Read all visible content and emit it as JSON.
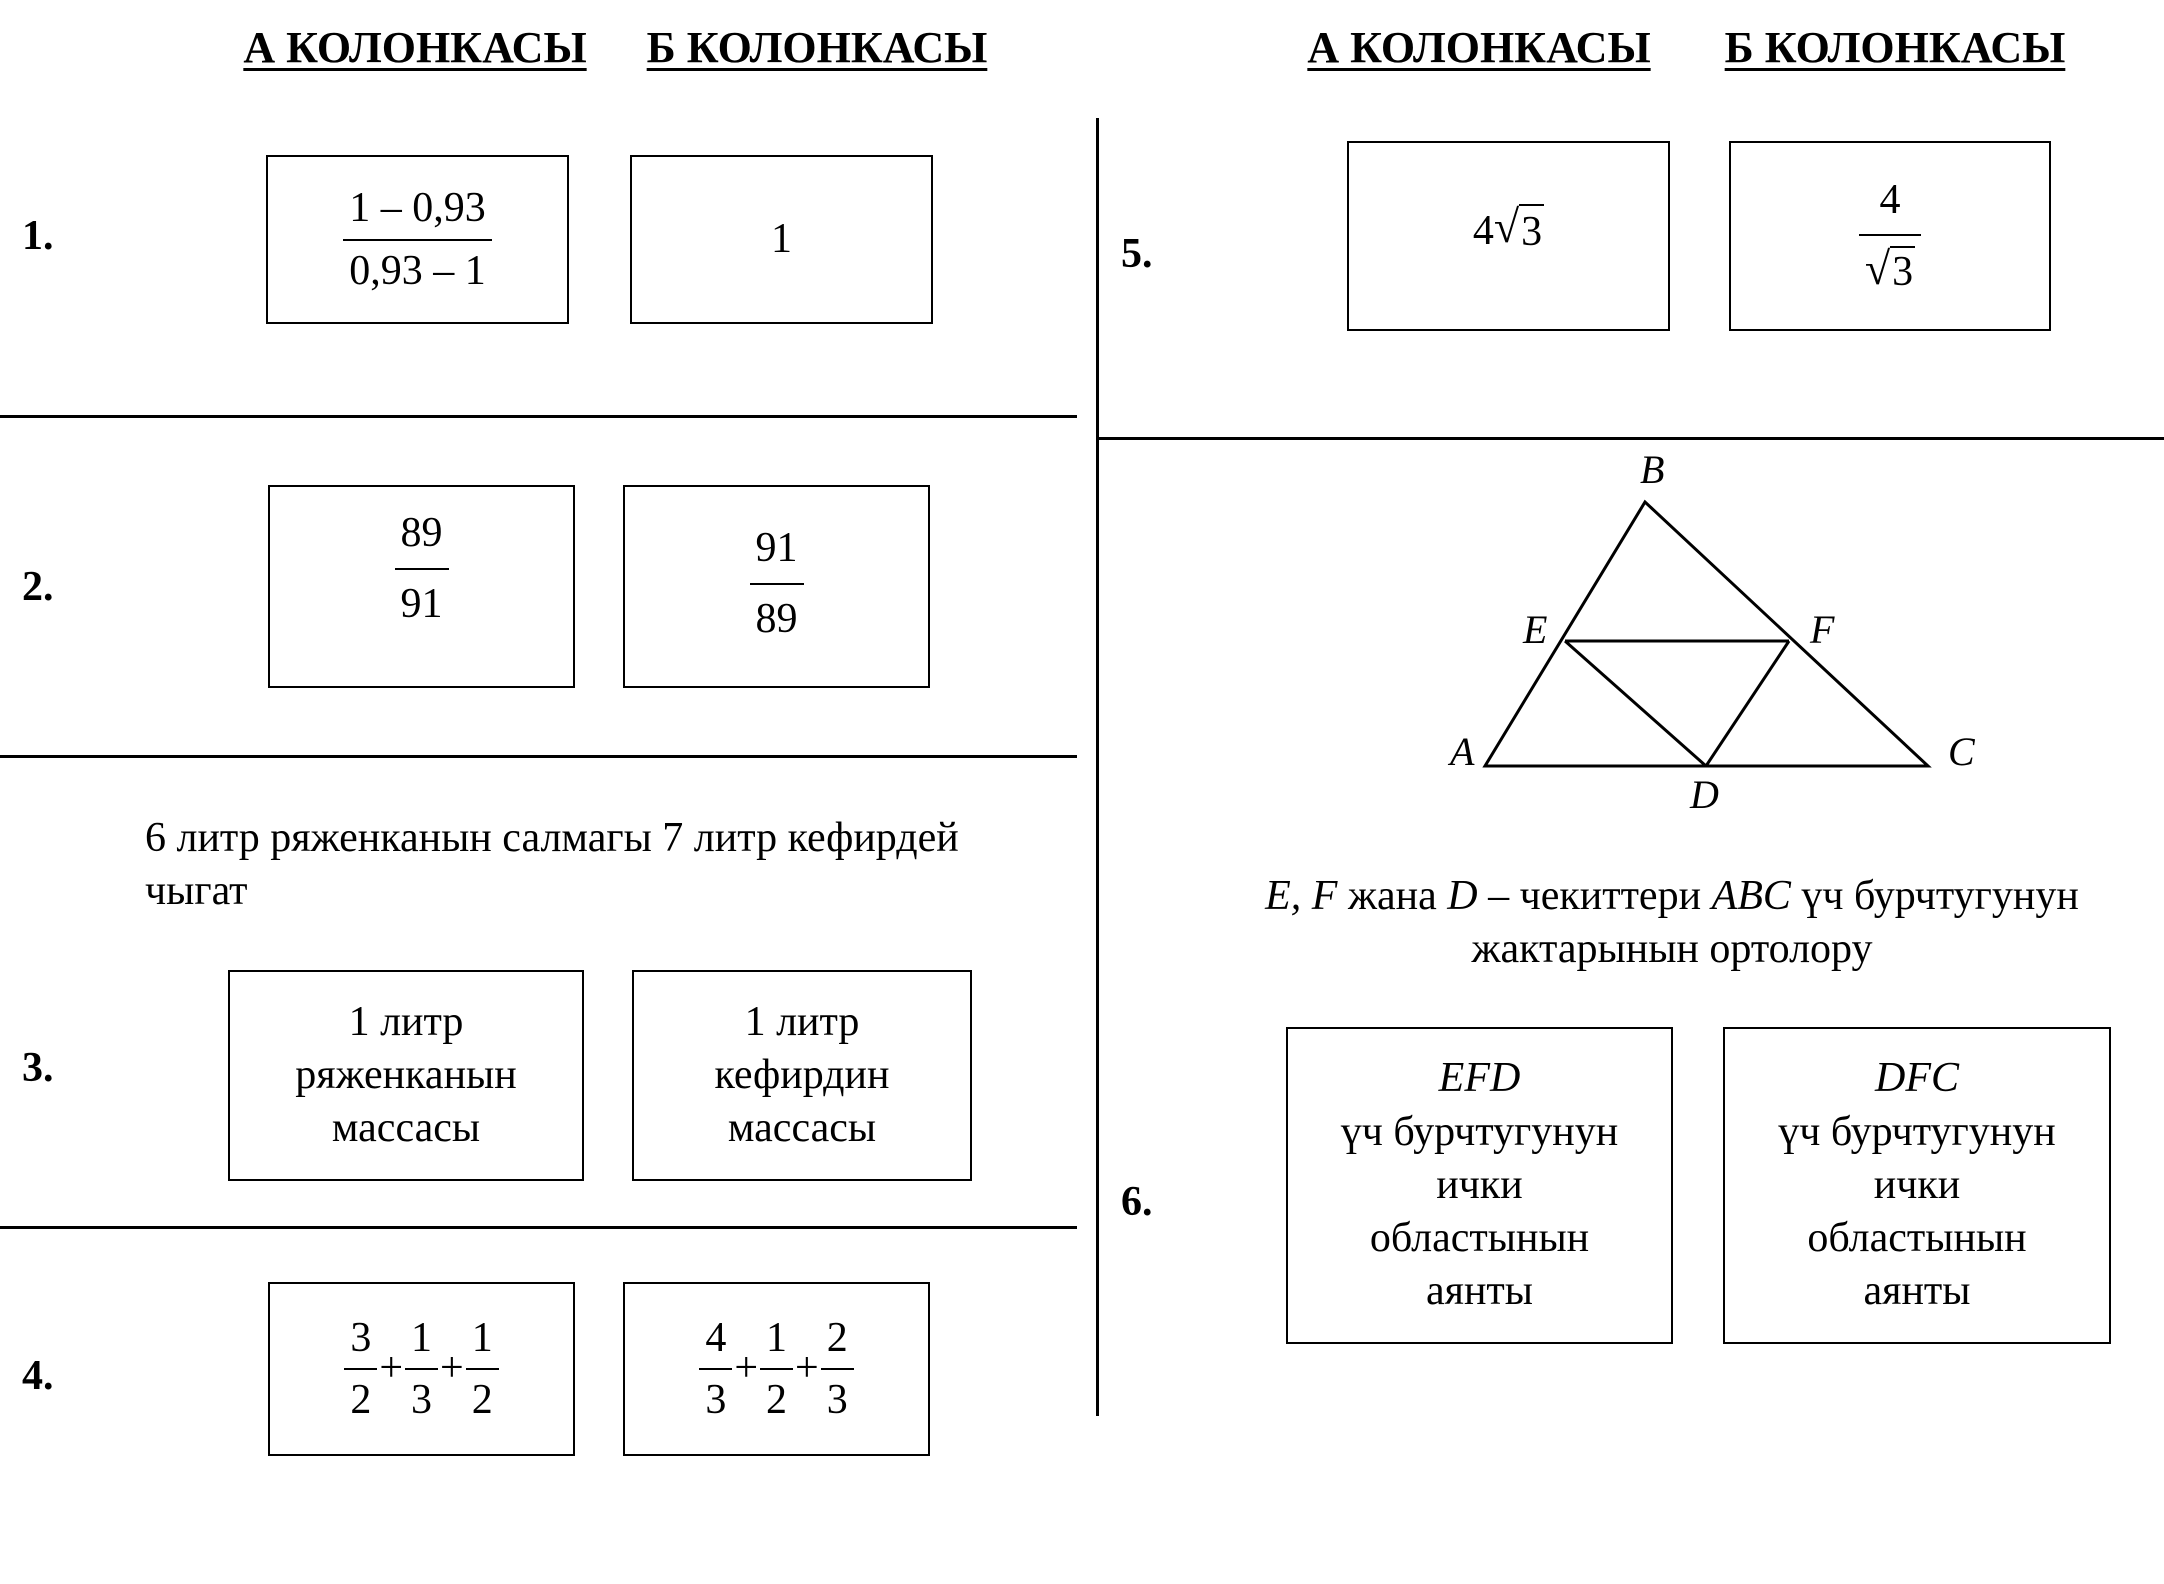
{
  "headers": {
    "left_col_a": "А КОЛОНКАСЫ",
    "left_col_b": "Б КОЛОНКАСЫ",
    "right_col_a": "А КОЛОНКАСЫ",
    "right_col_b": "Б КОЛОНКАСЫ"
  },
  "items": {
    "q1": {
      "number": "1.",
      "a_num": "1 – 0,93",
      "a_den": "0,93 – 1",
      "b": "1"
    },
    "q2": {
      "number": "2.",
      "a_num": "89",
      "a_den": "91",
      "b_num": "91",
      "b_den": "89"
    },
    "q3": {
      "number": "3.",
      "statement": "6 литр ряженканын салмагы 7 литр кефирдей чыгат",
      "a_line1": "1 литр",
      "a_line2": "ряженканын",
      "a_line3": "массасы",
      "b_line1": "1 литр",
      "b_line2": "кефирдин",
      "b_line3": "массасы"
    },
    "q4": {
      "number": "4.",
      "a_terms": [
        {
          "n": "3",
          "d": "2"
        },
        {
          "n": "1",
          "d": "3"
        },
        {
          "n": "1",
          "d": "2"
        }
      ],
      "b_terms": [
        {
          "n": "4",
          "d": "3"
        },
        {
          "n": "1",
          "d": "2"
        },
        {
          "n": "2",
          "d": "3"
        }
      ],
      "plus": "+"
    },
    "q5": {
      "number": "5.",
      "a_coef": "4",
      "a_rad": "3",
      "b_num": "4",
      "b_rad": "3",
      "radical": "√"
    },
    "q6": {
      "number": "6.",
      "figure_labels": {
        "A": "A",
        "B": "B",
        "C": "C",
        "D": "D",
        "E": "E",
        "F": "F"
      },
      "statement_p1": "E, F",
      "statement_p2": " жана ",
      "statement_p3": "D",
      "statement_p4": " – чекиттери ",
      "statement_p5": "ABC",
      "statement_p6": " үч бурчтугунун",
      "statement_line2": "жактарынын ортолору",
      "a_title": "EFD",
      "a_line2": "үч бурчтугунун",
      "a_line3": "ички",
      "a_line4": "областынын",
      "a_line5": "аянты",
      "b_title": "DFC",
      "b_line2": "үч бурчтугунун",
      "b_line3": "ички",
      "b_line4": "областынын",
      "b_line5": "аянты"
    }
  }
}
